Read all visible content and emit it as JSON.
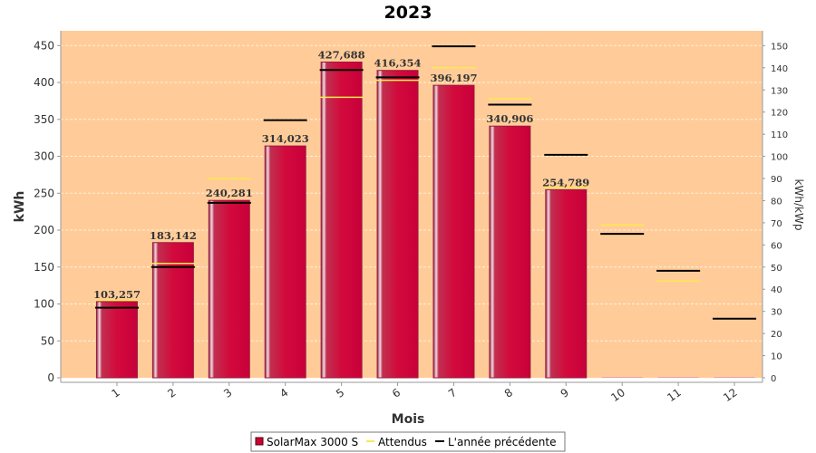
{
  "chart_data": {
    "type": "bar",
    "title": "2023",
    "xlabel": "Mois",
    "ylabel": "kWh",
    "y2label": "kWh/kWp",
    "categories": [
      "1",
      "2",
      "3",
      "4",
      "5",
      "6",
      "7",
      "8",
      "9",
      "10",
      "11",
      "12"
    ],
    "ylim": [
      0,
      470
    ],
    "y2lim": [
      0,
      156.7
    ],
    "yticks": [
      0,
      50,
      100,
      150,
      200,
      250,
      300,
      350,
      400,
      450
    ],
    "y2ticks": [
      0,
      10,
      20,
      30,
      40,
      50,
      60,
      70,
      80,
      90,
      100,
      110,
      120,
      130,
      140,
      150
    ],
    "grid": true,
    "legend_position": "bottom",
    "series": [
      {
        "name": "SolarMax 3000 S",
        "kind": "bar",
        "color": "#CC0033",
        "values": [
          103.257,
          183.142,
          240.281,
          314.023,
          427.688,
          416.354,
          396.197,
          340.906,
          254.789,
          0,
          0,
          0
        ],
        "labels": [
          "103,257",
          "183,142",
          "240,281",
          "314,023",
          "427,688",
          "416,354",
          "396,197",
          "340,906",
          "254,789",
          "",
          "",
          ""
        ]
      },
      {
        "name": "Attendus",
        "kind": "marker",
        "color": "#FFE84D",
        "values": [
          105,
          155,
          270,
          0,
          380,
          403,
          420,
          378,
          258,
          207,
          131,
          0
        ]
      },
      {
        "name": "L'année précédente",
        "kind": "marker",
        "color": "#000000",
        "values": [
          95,
          150,
          237,
          349,
          417,
          407,
          449,
          370,
          302,
          195,
          145,
          80
        ]
      }
    ]
  },
  "colors": {
    "plot_background": "#FFCC99",
    "grid": "#FFF0DC"
  }
}
